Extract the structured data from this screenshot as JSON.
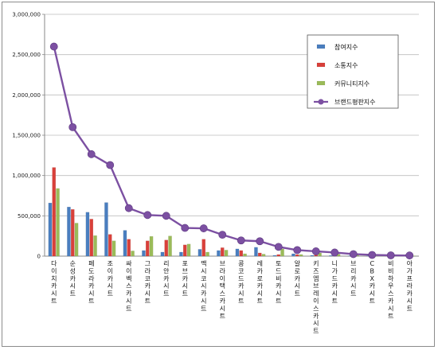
{
  "chart_data": {
    "type": "bar",
    "y_axis": {
      "min": 0,
      "max": 3000000,
      "step": 500000,
      "tick_labels": [
        "0",
        "500,000",
        "1,000,000",
        "1,500,000",
        "2,000,000",
        "2,500,000",
        "3,000,000"
      ]
    },
    "grid": "horizontal",
    "legend_position": "top-right",
    "categories": [
      "다이치카시트",
      "순성카시트",
      "페도라카시트",
      "조이카시트",
      "싸이벡스카시트",
      "그라코카시트",
      "리안카시트",
      "포브카시트",
      "맥시코시카시트",
      "브라이택스카시트",
      "콩코드카시트",
      "레카로카시트",
      "토드비카시트",
      "알로카시트",
      "키즈엠브레이스카시트",
      "니가드카시트",
      "브리카시트",
      "CBX카시트",
      "비비하우스카시트",
      "아가프라카시트"
    ],
    "series": [
      {
        "name": "참여지수",
        "type": "bar",
        "color": "#4a7ebf",
        "values": [
          660000,
          610000,
          545000,
          665000,
          320000,
          70000,
          50000,
          50000,
          85000,
          70000,
          90000,
          110000,
          10000,
          30000,
          10000,
          8000,
          5000,
          5000,
          5000,
          5000
        ]
      },
      {
        "name": "소통지수",
        "type": "bar",
        "color": "#d9403a",
        "values": [
          1100000,
          580000,
          460000,
          270000,
          210000,
          190000,
          200000,
          140000,
          210000,
          105000,
          70000,
          40000,
          20000,
          20000,
          15000,
          10000,
          8000,
          5000,
          5000,
          5000
        ]
      },
      {
        "name": "커뮤니티지수",
        "type": "bar",
        "color": "#9bbb59",
        "values": [
          840000,
          410000,
          255000,
          190000,
          65000,
          245000,
          250000,
          150000,
          50000,
          75000,
          30000,
          25000,
          90000,
          20000,
          40000,
          25000,
          15000,
          10000,
          5000,
          5000
        ]
      },
      {
        "name": "브랜드평판지수",
        "type": "line",
        "color": "#7c50a2",
        "values": [
          2600000,
          1600000,
          1265000,
          1130000,
          595000,
          510000,
          500000,
          350000,
          345000,
          265000,
          195000,
          185000,
          115000,
          75000,
          60000,
          45000,
          25000,
          15000,
          10000,
          8000
        ]
      }
    ]
  }
}
